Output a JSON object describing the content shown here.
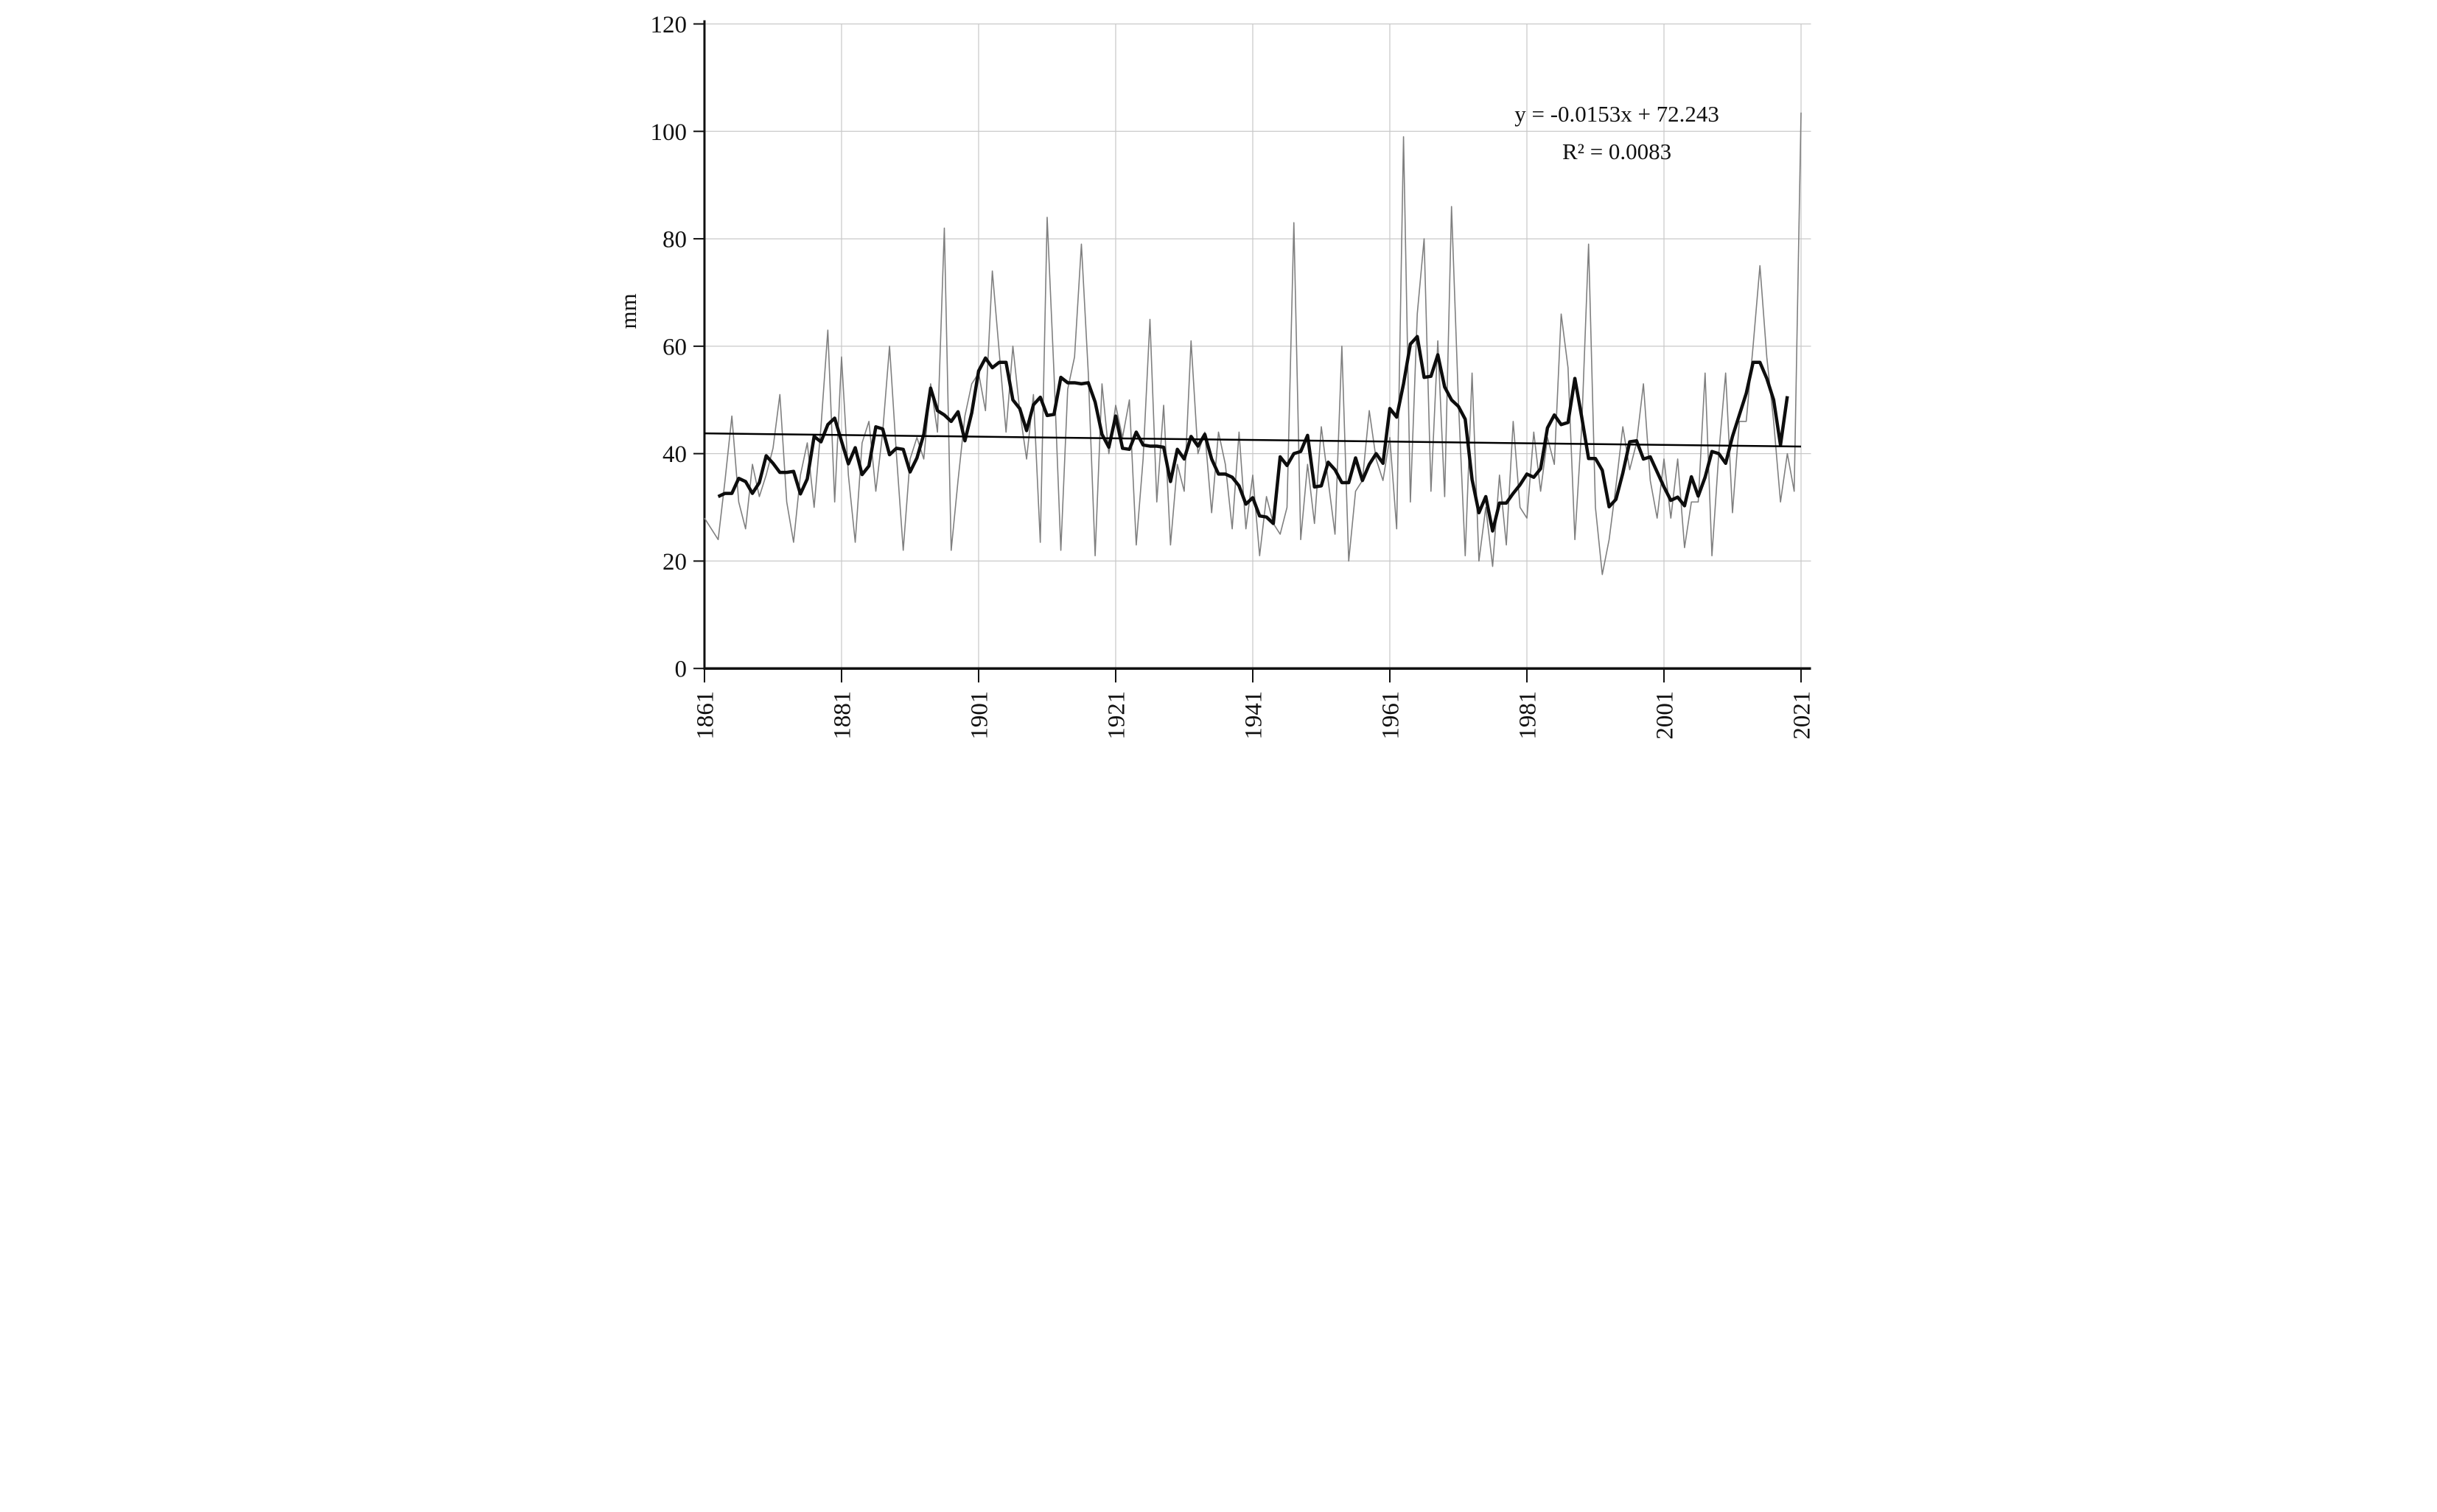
{
  "chart_data": {
    "type": "line",
    "title": "",
    "xlabel": "",
    "ylabel": "mm",
    "grid": "both",
    "legend_position": "none",
    "x_axis": {
      "start_year": 1861,
      "end_year": 2021,
      "step": 1,
      "tick_interval": 20,
      "tick_labels": [
        "1861",
        "1881",
        "1901",
        "1921",
        "1941",
        "1961",
        "1981",
        "2001",
        "2021"
      ],
      "tick_label_rotation_deg": -90
    },
    "y_axis": {
      "label": "mm",
      "min": 0,
      "max": 120,
      "tick_step": 20,
      "tick_labels": [
        "0",
        "20",
        "40",
        "60",
        "80",
        "100",
        "120"
      ]
    },
    "series": [
      {
        "name": "annual value",
        "style": "thin gray line",
        "color": "#7f7f7f",
        "stroke_width": 3.2,
        "first_year": 1861,
        "values": [
          28,
          26,
          24,
          35,
          47,
          31,
          26,
          38,
          32,
          36,
          41,
          51,
          31,
          23.5,
          36,
          42,
          30,
          45,
          63,
          31,
          58,
          36,
          23.5,
          42,
          46,
          33,
          44,
          60,
          40,
          22,
          39,
          43,
          39,
          53,
          44,
          82,
          22,
          35,
          47,
          53,
          55,
          48,
          74,
          59,
          44,
          60,
          48,
          39,
          51,
          23.5,
          84,
          55,
          22,
          52,
          58,
          79,
          55,
          21,
          53,
          40,
          49,
          43,
          50,
          23,
          39,
          65,
          31,
          49,
          23,
          38,
          33,
          61,
          40,
          44,
          29,
          44,
          38,
          26,
          44,
          26,
          36,
          21,
          32,
          27,
          25,
          30,
          83,
          24,
          38,
          27,
          45,
          35,
          25,
          60,
          20,
          33,
          35,
          48,
          39,
          35,
          43,
          26,
          99,
          31,
          66,
          80,
          33,
          61,
          32,
          86,
          50,
          21,
          55,
          20,
          30,
          19,
          36,
          23,
          46,
          30,
          28,
          44,
          33,
          43,
          38,
          66,
          56,
          24,
          45,
          79,
          30,
          17.5,
          24,
          34,
          45,
          37,
          42,
          53,
          35,
          28,
          39,
          28,
          39,
          22.5,
          31,
          31,
          55,
          21,
          40,
          55,
          29,
          46,
          46,
          60,
          75,
          58,
          46,
          31,
          40,
          33,
          103.5
        ]
      },
      {
        "name": "smoothed (5-year centered moving average)",
        "style": "thick black line",
        "color": "#0d0d0d",
        "stroke_width": 9,
        "derivation": "centered moving average of the annual series, window 5, plotted 1863-2019"
      }
    ],
    "trendline": {
      "name": "linear trend",
      "slope": -0.0153,
      "intercept": 72.243,
      "x_variable": "year",
      "color": "#000000",
      "stroke_width": 5,
      "equation_label": "y = -0.0153x + 72.243",
      "r2_label": "R² = 0.0083"
    },
    "annotation": {
      "line1": "y = -0.0153x + 72.243",
      "line2": "R² = 0.0083"
    },
    "colors": {
      "gridline": "#c9c9c9",
      "axis": "#111111",
      "background": "#ffffff"
    }
  }
}
